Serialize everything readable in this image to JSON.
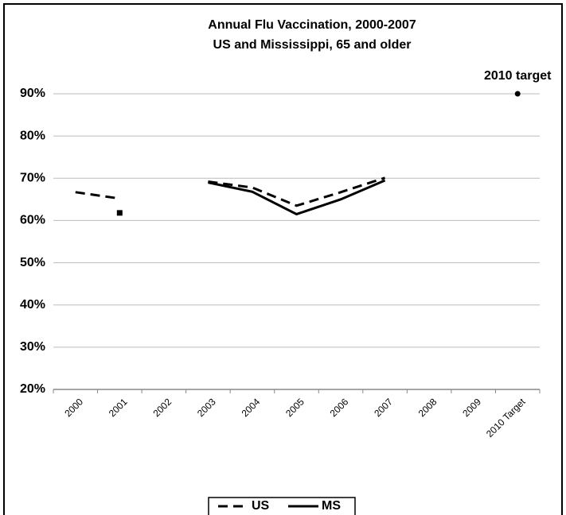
{
  "chart_data": {
    "type": "line",
    "title": "Annual Flu Vaccination, 2000-2007",
    "subtitle": "US and Mississippi, 65 and older",
    "categories": [
      "2000",
      "2001",
      "2002",
      "2003",
      "2004",
      "2005",
      "2006",
      "2007",
      "2008",
      "2009",
      "2010 Target"
    ],
    "series": [
      {
        "name": "US",
        "color": "#000000",
        "dash": true,
        "values": [
          66.7,
          65.2,
          null,
          69.2,
          67.8,
          63.5,
          66.7,
          70.1,
          null,
          null,
          null
        ]
      },
      {
        "name": "MS",
        "color": "#000000",
        "dash": false,
        "values": [
          null,
          61.8,
          null,
          69.0,
          66.8,
          61.5,
          65.0,
          69.5,
          null,
          null,
          null
        ]
      }
    ],
    "target": {
      "label": "2010 target",
      "category": "2010 Target",
      "value": 90
    },
    "ylim": [
      20,
      90
    ],
    "yticks": [
      {
        "value": 20,
        "label": "20%"
      },
      {
        "value": 30,
        "label": "30%"
      },
      {
        "value": 40,
        "label": "40%"
      },
      {
        "value": 50,
        "label": "50%"
      },
      {
        "value": 60,
        "label": "60%"
      },
      {
        "value": 70,
        "label": "70%"
      },
      {
        "value": 80,
        "label": "80%"
      },
      {
        "value": 90,
        "label": "90%"
      }
    ],
    "grid": true,
    "legend": "bottom"
  }
}
